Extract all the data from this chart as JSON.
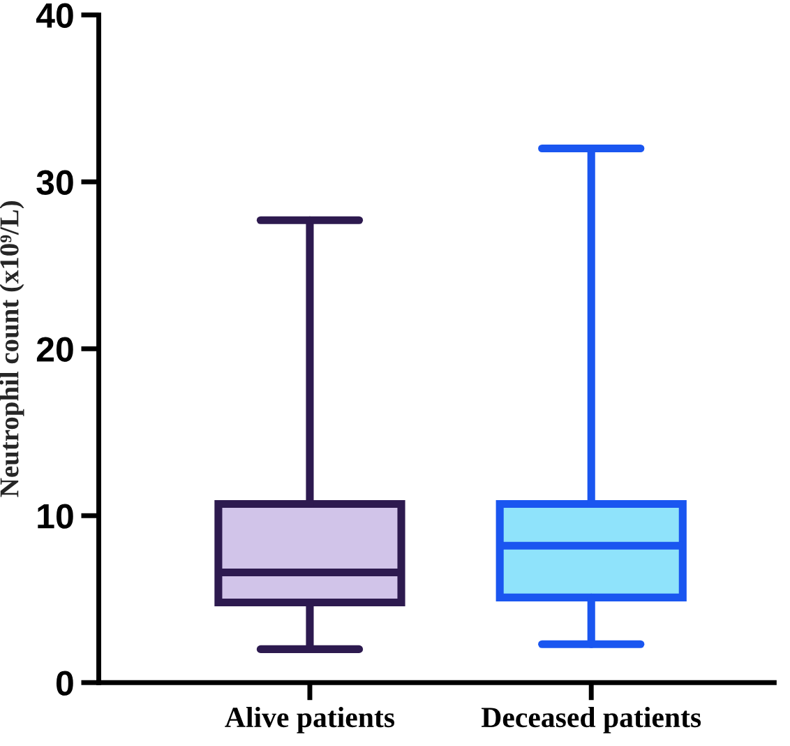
{
  "chart_data": {
    "type": "box",
    "ylabel": "Neutrophil count (x10⁹/L)",
    "categories": [
      "Alive patients",
      "Deceased patients"
    ],
    "series": [
      {
        "color": "#2d1a4f",
        "boxes": [
          {
            "low": 2.0,
            "q1": 4.8,
            "median": 6.6,
            "q3": 10.7,
            "high": 27.7
          },
          null
        ]
      },
      {
        "color": "#1a56f0",
        "boxes": [
          null,
          {
            "low": 2.3,
            "q1": 5.1,
            "median": 8.2,
            "q3": 10.7,
            "high": 32.0
          }
        ]
      }
    ],
    "colors": [
      "#d1c4e9",
      "#8fe3fb"
    ],
    "ylim": [
      0,
      40
    ],
    "yticks": [
      0,
      10,
      20,
      30,
      40
    ],
    "grid": false,
    "legend": false
  }
}
